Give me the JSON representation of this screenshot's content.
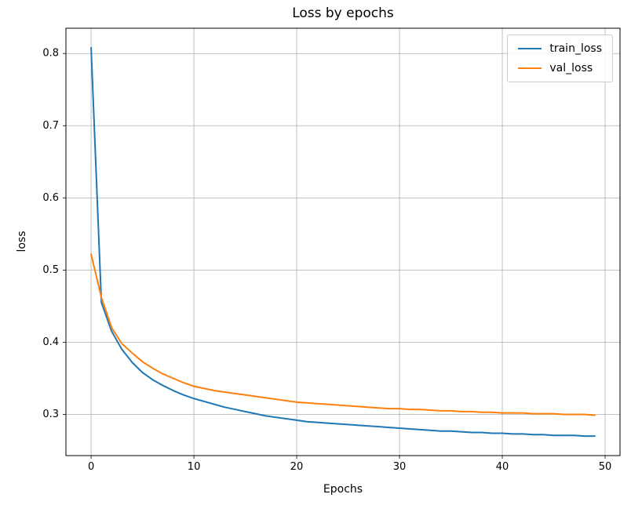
{
  "chart_data": {
    "type": "line",
    "title": "Loss by epochs",
    "xlabel": "Epochs",
    "ylabel": "loss",
    "grid": true,
    "legend_position": "upper right",
    "xlim": [
      -2.45,
      51.45
    ],
    "ylim": [
      0.243,
      0.835
    ],
    "xticks": [
      0,
      10,
      20,
      30,
      40,
      50
    ],
    "yticks": [
      0.3,
      0.4,
      0.5,
      0.6,
      0.7,
      0.8
    ],
    "x": [
      0,
      1,
      2,
      3,
      4,
      5,
      6,
      7,
      8,
      9,
      10,
      11,
      12,
      13,
      14,
      15,
      16,
      17,
      18,
      19,
      20,
      21,
      22,
      23,
      24,
      25,
      26,
      27,
      28,
      29,
      30,
      31,
      32,
      33,
      34,
      35,
      36,
      37,
      38,
      39,
      40,
      41,
      42,
      43,
      44,
      45,
      46,
      47,
      48,
      49
    ],
    "series": [
      {
        "name": "train_loss",
        "color": "#1f77b4",
        "values": [
          0.808,
          0.455,
          0.415,
          0.39,
          0.372,
          0.358,
          0.348,
          0.34,
          0.333,
          0.327,
          0.322,
          0.318,
          0.314,
          0.31,
          0.307,
          0.304,
          0.301,
          0.298,
          0.296,
          0.294,
          0.292,
          0.29,
          0.289,
          0.288,
          0.287,
          0.286,
          0.285,
          0.284,
          0.283,
          0.282,
          0.281,
          0.28,
          0.279,
          0.278,
          0.277,
          0.277,
          0.276,
          0.275,
          0.275,
          0.274,
          0.274,
          0.273,
          0.273,
          0.272,
          0.272,
          0.271,
          0.271,
          0.271,
          0.27,
          0.27
        ]
      },
      {
        "name": "val_loss",
        "color": "#ff7f0e",
        "values": [
          0.522,
          0.462,
          0.42,
          0.398,
          0.385,
          0.373,
          0.364,
          0.356,
          0.35,
          0.344,
          0.339,
          0.336,
          0.333,
          0.331,
          0.329,
          0.327,
          0.325,
          0.323,
          0.321,
          0.319,
          0.317,
          0.316,
          0.315,
          0.314,
          0.313,
          0.312,
          0.311,
          0.31,
          0.309,
          0.308,
          0.308,
          0.307,
          0.307,
          0.306,
          0.305,
          0.305,
          0.304,
          0.304,
          0.303,
          0.303,
          0.302,
          0.302,
          0.302,
          0.301,
          0.301,
          0.301,
          0.3,
          0.3,
          0.3,
          0.299
        ]
      }
    ]
  },
  "style": {
    "grid_color": "#b0b0b0",
    "axis_color": "#000000",
    "tick_label_color": "#000000"
  }
}
